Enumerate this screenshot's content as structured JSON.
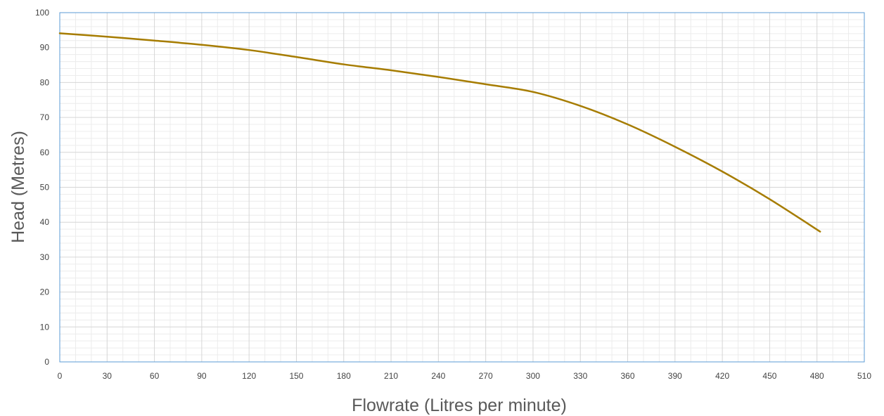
{
  "chart_data": {
    "type": "line",
    "xlabel": "Flowrate (Litres per minute)",
    "ylabel": "Head (Metres)",
    "xlim": [
      0,
      510
    ],
    "ylim": [
      0,
      100
    ],
    "x_ticks": [
      0,
      30,
      60,
      90,
      120,
      150,
      180,
      210,
      240,
      270,
      300,
      330,
      360,
      390,
      420,
      450,
      480,
      510
    ],
    "y_ticks": [
      0,
      10,
      20,
      30,
      40,
      50,
      60,
      70,
      80,
      90,
      100
    ],
    "x_minor_step": 10,
    "y_minor_step": 2,
    "grid": true,
    "legend": "none",
    "series": [
      {
        "color": "#a67c00",
        "points": [
          [
            0,
            94.1
          ],
          [
            30,
            93.1
          ],
          [
            60,
            92.0
          ],
          [
            90,
            90.8
          ],
          [
            120,
            89.3
          ],
          [
            150,
            87.3
          ],
          [
            180,
            85.2
          ],
          [
            210,
            83.5
          ],
          [
            240,
            81.6
          ],
          [
            270,
            79.5
          ],
          [
            300,
            77.3
          ],
          [
            330,
            73.3
          ],
          [
            360,
            68.0
          ],
          [
            390,
            61.6
          ],
          [
            420,
            54.5
          ],
          [
            450,
            46.6
          ],
          [
            482,
            37.3
          ]
        ]
      }
    ]
  }
}
